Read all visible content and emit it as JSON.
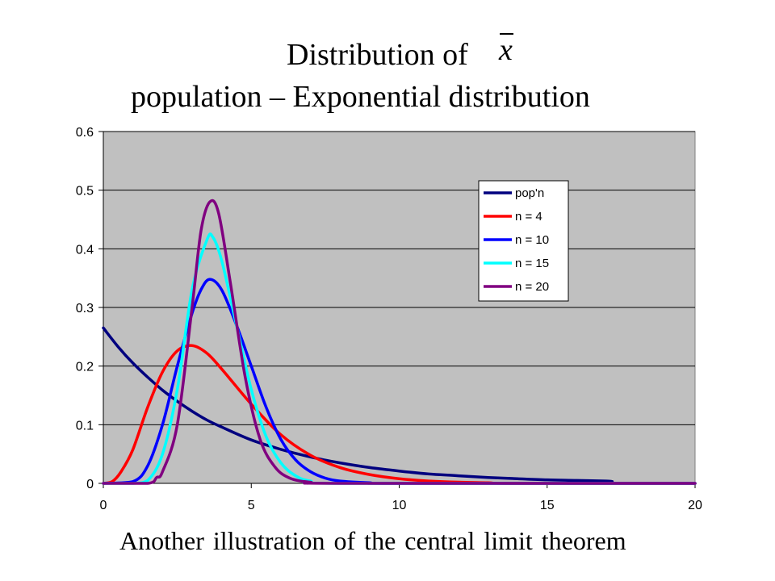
{
  "title": {
    "line1": "Distribution of",
    "xbar_symbol": "x",
    "line2": "population – Exponential distribution"
  },
  "footer": "Another illustration of the central limit theorem",
  "chart_data": {
    "type": "line",
    "xlim": [
      0,
      20
    ],
    "ylim": [
      0,
      0.6
    ],
    "x_ticks": [
      "0",
      "5",
      "10",
      "15",
      "20"
    ],
    "y_ticks": [
      "0",
      "0.1",
      "0.2",
      "0.3",
      "0.4",
      "0.5",
      "0.6"
    ],
    "grid": "horizontal",
    "plot_background": "#c0c0c0",
    "legend_position": "upper-right",
    "series": [
      {
        "name": "pop'n",
        "color": "#00007f",
        "points": [
          [
            0,
            0.265
          ],
          [
            0.5,
            0.233
          ],
          [
            1,
            0.205
          ],
          [
            1.5,
            0.181
          ],
          [
            2,
            0.159
          ],
          [
            2.5,
            0.14
          ],
          [
            3,
            0.123
          ],
          [
            3.5,
            0.108
          ],
          [
            4,
            0.096
          ],
          [
            5,
            0.074
          ],
          [
            6,
            0.058
          ],
          [
            7,
            0.045
          ],
          [
            8,
            0.035
          ],
          [
            9,
            0.027
          ],
          [
            10,
            0.021
          ],
          [
            11,
            0.016
          ],
          [
            12,
            0.013
          ],
          [
            13,
            0.01
          ],
          [
            14,
            0.008
          ],
          [
            15,
            0.006
          ],
          [
            16,
            0.005
          ],
          [
            17,
            0.004
          ],
          [
            17.2,
            0.003
          ]
        ]
      },
      {
        "name": "n = 4",
        "color": "#ff0000",
        "points": [
          [
            0,
            0
          ],
          [
            0.3,
            0.003
          ],
          [
            0.6,
            0.02
          ],
          [
            1,
            0.058
          ],
          [
            1.5,
            0.13
          ],
          [
            2,
            0.19
          ],
          [
            2.5,
            0.226
          ],
          [
            3,
            0.235
          ],
          [
            3.5,
            0.222
          ],
          [
            4,
            0.195
          ],
          [
            5,
            0.135
          ],
          [
            6,
            0.083
          ],
          [
            7,
            0.048
          ],
          [
            8,
            0.027
          ],
          [
            9,
            0.015
          ],
          [
            10,
            0.008
          ],
          [
            11,
            0.004
          ],
          [
            12,
            0.002
          ],
          [
            13,
            0.001
          ],
          [
            14,
            0
          ],
          [
            20,
            0
          ]
        ]
      },
      {
        "name": "n = 10",
        "color": "#0000ff",
        "points": [
          [
            0,
            0
          ],
          [
            1,
            0.003
          ],
          [
            1.5,
            0.03
          ],
          [
            2,
            0.1
          ],
          [
            2.5,
            0.2
          ],
          [
            3,
            0.29
          ],
          [
            3.3,
            0.33
          ],
          [
            3.6,
            0.348
          ],
          [
            4,
            0.33
          ],
          [
            4.5,
            0.27
          ],
          [
            5,
            0.2
          ],
          [
            5.5,
            0.13
          ],
          [
            6,
            0.075
          ],
          [
            6.5,
            0.04
          ],
          [
            7,
            0.02
          ],
          [
            7.5,
            0.009
          ],
          [
            8,
            0.004
          ],
          [
            9,
            0.001
          ],
          [
            10,
            0
          ],
          [
            20,
            0
          ]
        ]
      },
      {
        "name": "n = 15",
        "color": "#00ffff",
        "points": [
          [
            0,
            0
          ],
          [
            1,
            0
          ],
          [
            1.5,
            0.005
          ],
          [
            2,
            0.05
          ],
          [
            2.5,
            0.16
          ],
          [
            3,
            0.33
          ],
          [
            3.5,
            0.415
          ],
          [
            3.7,
            0.42
          ],
          [
            4,
            0.38
          ],
          [
            4.5,
            0.27
          ],
          [
            5,
            0.16
          ],
          [
            5.5,
            0.08
          ],
          [
            6,
            0.035
          ],
          [
            6.5,
            0.013
          ],
          [
            7,
            0.004
          ],
          [
            8,
            0
          ],
          [
            20,
            0
          ]
        ]
      },
      {
        "name": "n = 20",
        "color": "#800080",
        "points": [
          [
            0,
            0
          ],
          [
            1.5,
            0
          ],
          [
            1.8,
            0.01
          ],
          [
            2,
            0.02
          ],
          [
            2.5,
            0.1
          ],
          [
            3,
            0.3
          ],
          [
            3.3,
            0.43
          ],
          [
            3.6,
            0.48
          ],
          [
            3.9,
            0.46
          ],
          [
            4.3,
            0.34
          ],
          [
            4.8,
            0.18
          ],
          [
            5.3,
            0.075
          ],
          [
            5.8,
            0.028
          ],
          [
            6.3,
            0.009
          ],
          [
            7,
            0.002
          ],
          [
            8,
            0
          ],
          [
            20,
            0
          ]
        ]
      }
    ]
  }
}
